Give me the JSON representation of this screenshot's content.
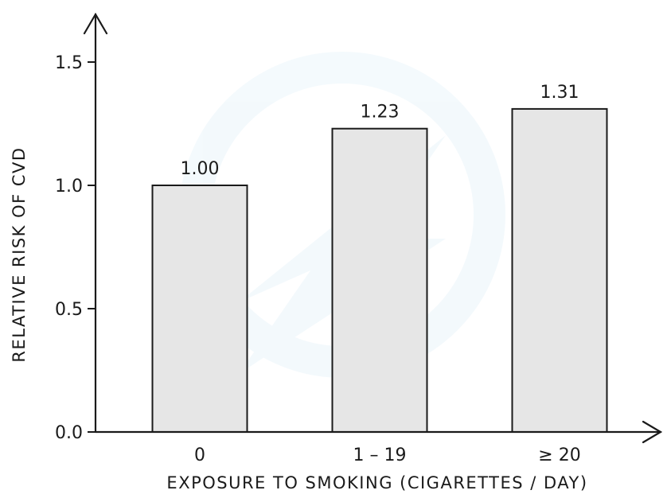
{
  "chart_data": {
    "type": "bar",
    "title": "",
    "xlabel": "EXPOSURE  TO  SMOKING  (CIGARETTES / DAY)",
    "ylabel": "RELATIVE  RISK  OF  CVD",
    "categories": [
      "0",
      "1 – 19",
      "≥ 20"
    ],
    "values": [
      1.0,
      1.23,
      1.31
    ],
    "data_labels": [
      "1.00",
      "1.23",
      "1.31"
    ],
    "ylim": [
      0,
      1.5
    ],
    "y_ticks": [
      0.0,
      0.5,
      1.0,
      1.5
    ],
    "y_tick_labels": [
      "0.0",
      "0.5",
      "1.0",
      "1.5"
    ],
    "grid": false,
    "legend": "none",
    "colors": {
      "bar_fill": "#e6e6e6",
      "bar_stroke": "#1a1a1a",
      "axis": "#1a1a1a"
    }
  }
}
